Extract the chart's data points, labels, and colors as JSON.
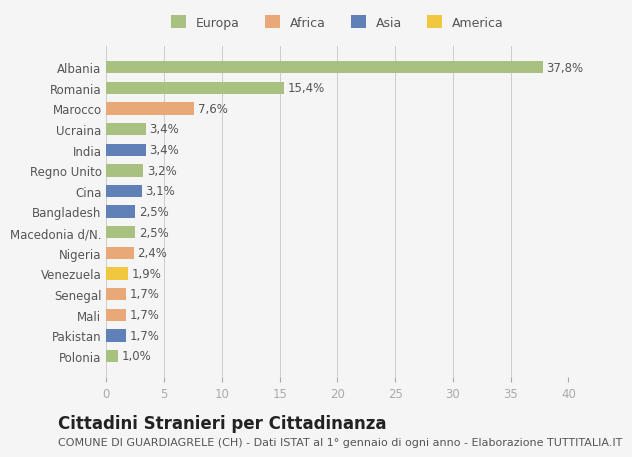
{
  "categories": [
    "Albania",
    "Romania",
    "Marocco",
    "Ucraina",
    "India",
    "Regno Unito",
    "Cina",
    "Bangladesh",
    "Macedonia d/N.",
    "Nigeria",
    "Venezuela",
    "Senegal",
    "Mali",
    "Pakistan",
    "Polonia"
  ],
  "values": [
    37.8,
    15.4,
    7.6,
    3.4,
    3.4,
    3.2,
    3.1,
    2.5,
    2.5,
    2.4,
    1.9,
    1.7,
    1.7,
    1.7,
    1.0
  ],
  "labels": [
    "37,8%",
    "15,4%",
    "7,6%",
    "3,4%",
    "3,4%",
    "3,2%",
    "3,1%",
    "2,5%",
    "2,5%",
    "2,4%",
    "1,9%",
    "1,7%",
    "1,7%",
    "1,7%",
    "1,0%"
  ],
  "colors": [
    "#a8c080",
    "#a8c080",
    "#e8a878",
    "#a8c080",
    "#6080b8",
    "#a8c080",
    "#6080b8",
    "#6080b8",
    "#a8c080",
    "#e8a878",
    "#f0c840",
    "#e8a878",
    "#e8a878",
    "#6080b8",
    "#a8c080"
  ],
  "legend_labels": [
    "Europa",
    "Africa",
    "Asia",
    "America"
  ],
  "legend_colors": [
    "#a8c080",
    "#e8a878",
    "#6080b8",
    "#f0c840"
  ],
  "title": "Cittadini Stranieri per Cittadinanza",
  "subtitle": "COMUNE DI GUARDIAGRELE (CH) - Dati ISTAT al 1° gennaio di ogni anno - Elaborazione TUTTITALIA.IT",
  "xlim": [
    0,
    40
  ],
  "xticks": [
    0,
    5,
    10,
    15,
    20,
    25,
    30,
    35,
    40
  ],
  "bg_color": "#f5f5f5",
  "bar_height": 0.6,
  "label_fontsize": 8.5,
  "title_fontsize": 12,
  "subtitle_fontsize": 8
}
